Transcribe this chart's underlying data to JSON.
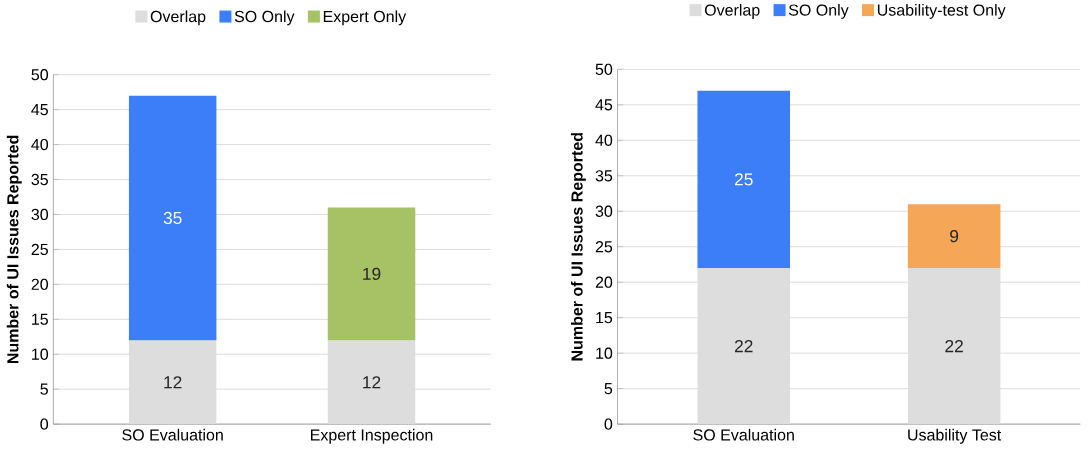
{
  "chart_data": [
    {
      "type": "bar",
      "stacked": true,
      "categories": [
        "SO Evaluation",
        "Expert Inspection"
      ],
      "ylabel": "Number of UI Issues Reported",
      "ylim": [
        0,
        50
      ],
      "yticks": [
        0,
        5,
        10,
        15,
        20,
        25,
        30,
        35,
        40,
        45,
        50
      ],
      "grid": "y",
      "legend": "top",
      "data_labels": true,
      "series": [
        {
          "name": "Overlap",
          "color": "#dddddd",
          "values": [
            12,
            12
          ]
        },
        {
          "name": "SO Only",
          "color": "#3c7ef8",
          "values": [
            35,
            null
          ]
        },
        {
          "name": "Expert Only",
          "color": "#a6c264",
          "values": [
            null,
            19
          ]
        }
      ]
    },
    {
      "type": "bar",
      "stacked": true,
      "categories": [
        "SO Evaluation",
        "Usability Test"
      ],
      "ylabel": "Number of UI Issues Reported",
      "ylim": [
        0,
        50
      ],
      "yticks": [
        0,
        5,
        10,
        15,
        20,
        25,
        30,
        35,
        40,
        45,
        50
      ],
      "grid": "y",
      "legend": "top",
      "data_labels": true,
      "series": [
        {
          "name": "Overlap",
          "color": "#dddddd",
          "values": [
            22,
            22
          ]
        },
        {
          "name": "SO Only",
          "color": "#3c7ef8",
          "values": [
            25,
            null
          ]
        },
        {
          "name": "Usability-test Only",
          "color": "#f5a656",
          "values": [
            null,
            9
          ]
        }
      ]
    }
  ]
}
